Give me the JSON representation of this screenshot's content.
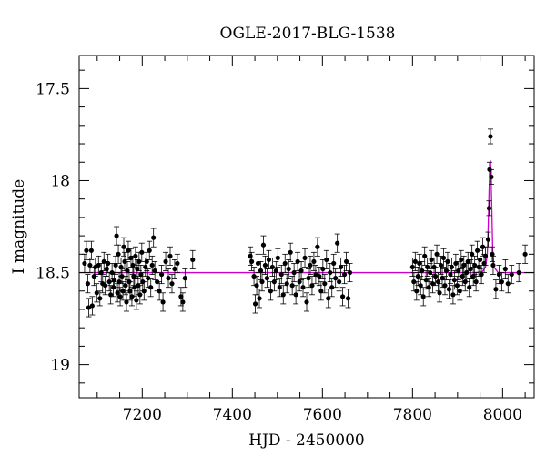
{
  "chart_data": {
    "type": "scatter",
    "title": "OGLE-2017-BLG-1538",
    "xlabel": "HJD - 2450000",
    "ylabel": "I magnitude",
    "xlim": [
      7060,
      8070
    ],
    "ylim": [
      19.18,
      17.32
    ],
    "y_inverted": true,
    "grid": false,
    "x_ticks": [
      7200,
      7400,
      7600,
      7800,
      8000
    ],
    "x_tick_labels": [
      "7200",
      "7400",
      "7600",
      "7800",
      "8000"
    ],
    "y_ticks": [
      17.5,
      18,
      18.5,
      19
    ],
    "y_tick_labels": [
      "17.5",
      "18",
      "18.5",
      "19"
    ],
    "colors": {
      "data": "#000000",
      "model": "#cc00cc"
    },
    "series": [
      {
        "type": "points_with_errorbars",
        "points": [
          [
            7072,
            18.45,
            0.05
          ],
          [
            7076,
            18.38,
            0.05
          ],
          [
            7079,
            18.56,
            0.05
          ],
          [
            7081,
            18.69,
            0.05
          ],
          [
            7084,
            18.46,
            0.04
          ],
          [
            7087,
            18.38,
            0.05
          ],
          [
            7089,
            18.68,
            0.05
          ],
          [
            7093,
            18.52,
            0.05
          ],
          [
            7096,
            18.47,
            0.05
          ],
          [
            7099,
            18.61,
            0.05
          ],
          [
            7103,
            18.46,
            0.05
          ],
          [
            7106,
            18.64,
            0.04
          ],
          [
            7109,
            18.5,
            0.05
          ],
          [
            7112,
            18.56,
            0.05
          ],
          [
            7115,
            18.44,
            0.05
          ],
          [
            7118,
            18.57,
            0.05
          ],
          [
            7121,
            18.48,
            0.04
          ],
          [
            7124,
            18.45,
            0.05
          ],
          [
            7127,
            18.55,
            0.05
          ],
          [
            7130,
            18.62,
            0.05
          ],
          [
            7133,
            18.5,
            0.05
          ],
          [
            7136,
            18.58,
            0.05
          ],
          [
            7138,
            18.54,
            0.04
          ],
          [
            7141,
            18.46,
            0.05
          ],
          [
            7143,
            18.3,
            0.05
          ],
          [
            7145,
            18.61,
            0.05
          ],
          [
            7147,
            18.4,
            0.05
          ],
          [
            7149,
            18.55,
            0.05
          ],
          [
            7151,
            18.63,
            0.05
          ],
          [
            7153,
            18.47,
            0.05
          ],
          [
            7155,
            18.52,
            0.04
          ],
          [
            7157,
            18.6,
            0.05
          ],
          [
            7159,
            18.36,
            0.05
          ],
          [
            7161,
            18.44,
            0.05
          ],
          [
            7163,
            18.57,
            0.05
          ],
          [
            7165,
            18.66,
            0.05
          ],
          [
            7167,
            18.49,
            0.05
          ],
          [
            7169,
            18.38,
            0.05
          ],
          [
            7171,
            18.55,
            0.05
          ],
          [
            7173,
            18.6,
            0.05
          ],
          [
            7175,
            18.42,
            0.05
          ],
          [
            7177,
            18.63,
            0.05
          ],
          [
            7179,
            18.46,
            0.05
          ],
          [
            7181,
            18.52,
            0.05
          ],
          [
            7183,
            18.58,
            0.05
          ],
          [
            7185,
            18.41,
            0.05
          ],
          [
            7187,
            18.65,
            0.05
          ],
          [
            7189,
            18.48,
            0.05
          ],
          [
            7191,
            18.57,
            0.05
          ],
          [
            7193,
            18.44,
            0.05
          ],
          [
            7195,
            18.62,
            0.05
          ],
          [
            7197,
            18.51,
            0.05
          ],
          [
            7199,
            18.39,
            0.05
          ],
          [
            7201,
            18.55,
            0.05
          ],
          [
            7204,
            18.6,
            0.05
          ],
          [
            7207,
            18.47,
            0.05
          ],
          [
            7210,
            18.44,
            0.05
          ],
          [
            7213,
            18.53,
            0.05
          ],
          [
            7216,
            18.38,
            0.05
          ],
          [
            7219,
            18.58,
            0.05
          ],
          [
            7222,
            18.46,
            0.05
          ],
          [
            7225,
            18.31,
            0.05
          ],
          [
            7228,
            18.49,
            0.05
          ],
          [
            7233,
            18.55,
            0.05
          ],
          [
            7238,
            18.6,
            0.05
          ],
          [
            7243,
            18.51,
            0.05
          ],
          [
            7246,
            18.66,
            0.05
          ],
          [
            7252,
            18.44,
            0.05
          ],
          [
            7258,
            18.53,
            0.05
          ],
          [
            7262,
            18.41,
            0.05
          ],
          [
            7266,
            18.56,
            0.05
          ],
          [
            7272,
            18.48,
            0.05
          ],
          [
            7278,
            18.45,
            0.05
          ],
          [
            7286,
            18.63,
            0.05
          ],
          [
            7290,
            18.66,
            0.05
          ],
          [
            7295,
            18.53,
            0.05
          ],
          [
            7312,
            18.43,
            0.05
          ],
          [
            7440,
            18.41,
            0.05
          ],
          [
            7443,
            18.44,
            0.05
          ],
          [
            7448,
            18.52,
            0.05
          ],
          [
            7451,
            18.67,
            0.05
          ],
          [
            7454,
            18.57,
            0.05
          ],
          [
            7457,
            18.45,
            0.05
          ],
          [
            7460,
            18.64,
            0.05
          ],
          [
            7463,
            18.49,
            0.05
          ],
          [
            7466,
            18.55,
            0.05
          ],
          [
            7469,
            18.35,
            0.05
          ],
          [
            7473,
            18.46,
            0.05
          ],
          [
            7477,
            18.53,
            0.05
          ],
          [
            7481,
            18.43,
            0.05
          ],
          [
            7485,
            18.6,
            0.05
          ],
          [
            7489,
            18.47,
            0.05
          ],
          [
            7493,
            18.55,
            0.05
          ],
          [
            7497,
            18.49,
            0.05
          ],
          [
            7501,
            18.42,
            0.05
          ],
          [
            7505,
            18.58,
            0.05
          ],
          [
            7509,
            18.51,
            0.05
          ],
          [
            7513,
            18.62,
            0.05
          ],
          [
            7517,
            18.45,
            0.05
          ],
          [
            7521,
            18.56,
            0.05
          ],
          [
            7525,
            18.48,
            0.05
          ],
          [
            7529,
            18.39,
            0.05
          ],
          [
            7533,
            18.57,
            0.05
          ],
          [
            7537,
            18.5,
            0.05
          ],
          [
            7541,
            18.62,
            0.05
          ],
          [
            7545,
            18.44,
            0.05
          ],
          [
            7549,
            18.55,
            0.05
          ],
          [
            7553,
            18.49,
            0.05
          ],
          [
            7557,
            18.58,
            0.05
          ],
          [
            7561,
            18.42,
            0.05
          ],
          [
            7565,
            18.66,
            0.05
          ],
          [
            7569,
            18.53,
            0.05
          ],
          [
            7573,
            18.46,
            0.05
          ],
          [
            7577,
            18.57,
            0.05
          ],
          [
            7581,
            18.44,
            0.05
          ],
          [
            7585,
            18.51,
            0.05
          ],
          [
            7589,
            18.36,
            0.05
          ],
          [
            7593,
            18.52,
            0.05
          ],
          [
            7597,
            18.6,
            0.05
          ],
          [
            7601,
            18.48,
            0.05
          ],
          [
            7605,
            18.56,
            0.05
          ],
          [
            7609,
            18.43,
            0.05
          ],
          [
            7613,
            18.64,
            0.05
          ],
          [
            7617,
            18.5,
            0.05
          ],
          [
            7621,
            18.58,
            0.05
          ],
          [
            7625,
            18.45,
            0.05
          ],
          [
            7629,
            18.53,
            0.05
          ],
          [
            7633,
            18.34,
            0.05
          ],
          [
            7637,
            18.55,
            0.05
          ],
          [
            7641,
            18.47,
            0.05
          ],
          [
            7645,
            18.63,
            0.05
          ],
          [
            7649,
            18.51,
            0.05
          ],
          [
            7653,
            18.44,
            0.05
          ],
          [
            7657,
            18.64,
            0.05
          ],
          [
            7661,
            18.5,
            0.05
          ],
          [
            7800,
            18.47,
            0.05
          ],
          [
            7803,
            18.55,
            0.05
          ],
          [
            7806,
            18.44,
            0.05
          ],
          [
            7809,
            18.6,
            0.05
          ],
          [
            7812,
            18.52,
            0.05
          ],
          [
            7815,
            18.45,
            0.05
          ],
          [
            7818,
            18.57,
            0.05
          ],
          [
            7821,
            18.49,
            0.05
          ],
          [
            7824,
            18.63,
            0.05
          ],
          [
            7827,
            18.41,
            0.05
          ],
          [
            7830,
            18.54,
            0.05
          ],
          [
            7833,
            18.47,
            0.05
          ],
          [
            7836,
            18.58,
            0.05
          ],
          [
            7839,
            18.5,
            0.05
          ],
          [
            7842,
            18.43,
            0.05
          ],
          [
            7845,
            18.56,
            0.05
          ],
          [
            7848,
            18.47,
            0.05
          ],
          [
            7851,
            18.52,
            0.05
          ],
          [
            7854,
            18.4,
            0.05
          ],
          [
            7857,
            18.55,
            0.05
          ],
          [
            7860,
            18.61,
            0.05
          ],
          [
            7863,
            18.46,
            0.05
          ],
          [
            7866,
            18.53,
            0.05
          ],
          [
            7869,
            18.42,
            0.05
          ],
          [
            7872,
            18.57,
            0.05
          ],
          [
            7875,
            18.49,
            0.05
          ],
          [
            7878,
            18.44,
            0.05
          ],
          [
            7881,
            18.59,
            0.05
          ],
          [
            7884,
            18.51,
            0.05
          ],
          [
            7887,
            18.47,
            0.05
          ],
          [
            7890,
            18.62,
            0.05
          ],
          [
            7893,
            18.54,
            0.05
          ],
          [
            7896,
            18.45,
            0.05
          ],
          [
            7899,
            18.57,
            0.05
          ],
          [
            7902,
            18.49,
            0.05
          ],
          [
            7905,
            18.6,
            0.05
          ],
          [
            7908,
            18.43,
            0.05
          ],
          [
            7911,
            18.52,
            0.05
          ],
          [
            7914,
            18.46,
            0.05
          ],
          [
            7917,
            18.55,
            0.05
          ],
          [
            7920,
            18.5,
            0.05
          ],
          [
            7923,
            18.44,
            0.05
          ],
          [
            7926,
            18.58,
            0.05
          ],
          [
            7929,
            18.48,
            0.05
          ],
          [
            7932,
            18.4,
            0.05
          ],
          [
            7935,
            18.52,
            0.05
          ],
          [
            7938,
            18.46,
            0.05
          ],
          [
            7941,
            18.55,
            0.05
          ],
          [
            7944,
            18.38,
            0.05
          ],
          [
            7947,
            18.47,
            0.05
          ],
          [
            7950,
            18.43,
            0.05
          ],
          [
            7953,
            18.51,
            0.05
          ],
          [
            7956,
            18.36,
            0.05
          ],
          [
            7959,
            18.45,
            0.05
          ],
          [
            7962,
            18.41,
            0.05
          ],
          [
            7968,
            18.32,
            0.04
          ],
          [
            7970,
            18.15,
            0.04
          ],
          [
            7971,
            17.94,
            0.04
          ],
          [
            7973,
            17.76,
            0.04
          ],
          [
            7975,
            17.98,
            0.04
          ],
          [
            7977,
            18.4,
            0.04
          ],
          [
            7979,
            18.46,
            0.05
          ],
          [
            7985,
            18.59,
            0.05
          ],
          [
            7992,
            18.51,
            0.05
          ],
          [
            7998,
            18.55,
            0.05
          ],
          [
            8006,
            18.48,
            0.05
          ],
          [
            8012,
            18.56,
            0.05
          ],
          [
            8020,
            18.51,
            0.05
          ],
          [
            8036,
            18.5,
            0.05
          ],
          [
            8050,
            18.4,
            0.05
          ]
        ]
      },
      {
        "type": "model_curve",
        "points": [
          [
            7060,
            18.5
          ],
          [
            7940,
            18.5
          ],
          [
            7955,
            18.495
          ],
          [
            7962,
            18.47
          ],
          [
            7966,
            18.4
          ],
          [
            7968,
            18.25
          ],
          [
            7970,
            18.05
          ],
          [
            7972,
            17.9
          ],
          [
            7973,
            17.89
          ],
          [
            7974,
            17.95
          ],
          [
            7976,
            18.15
          ],
          [
            7978,
            18.38
          ],
          [
            7981,
            18.47
          ],
          [
            7990,
            18.5
          ],
          [
            8070,
            18.5
          ]
        ]
      }
    ]
  }
}
